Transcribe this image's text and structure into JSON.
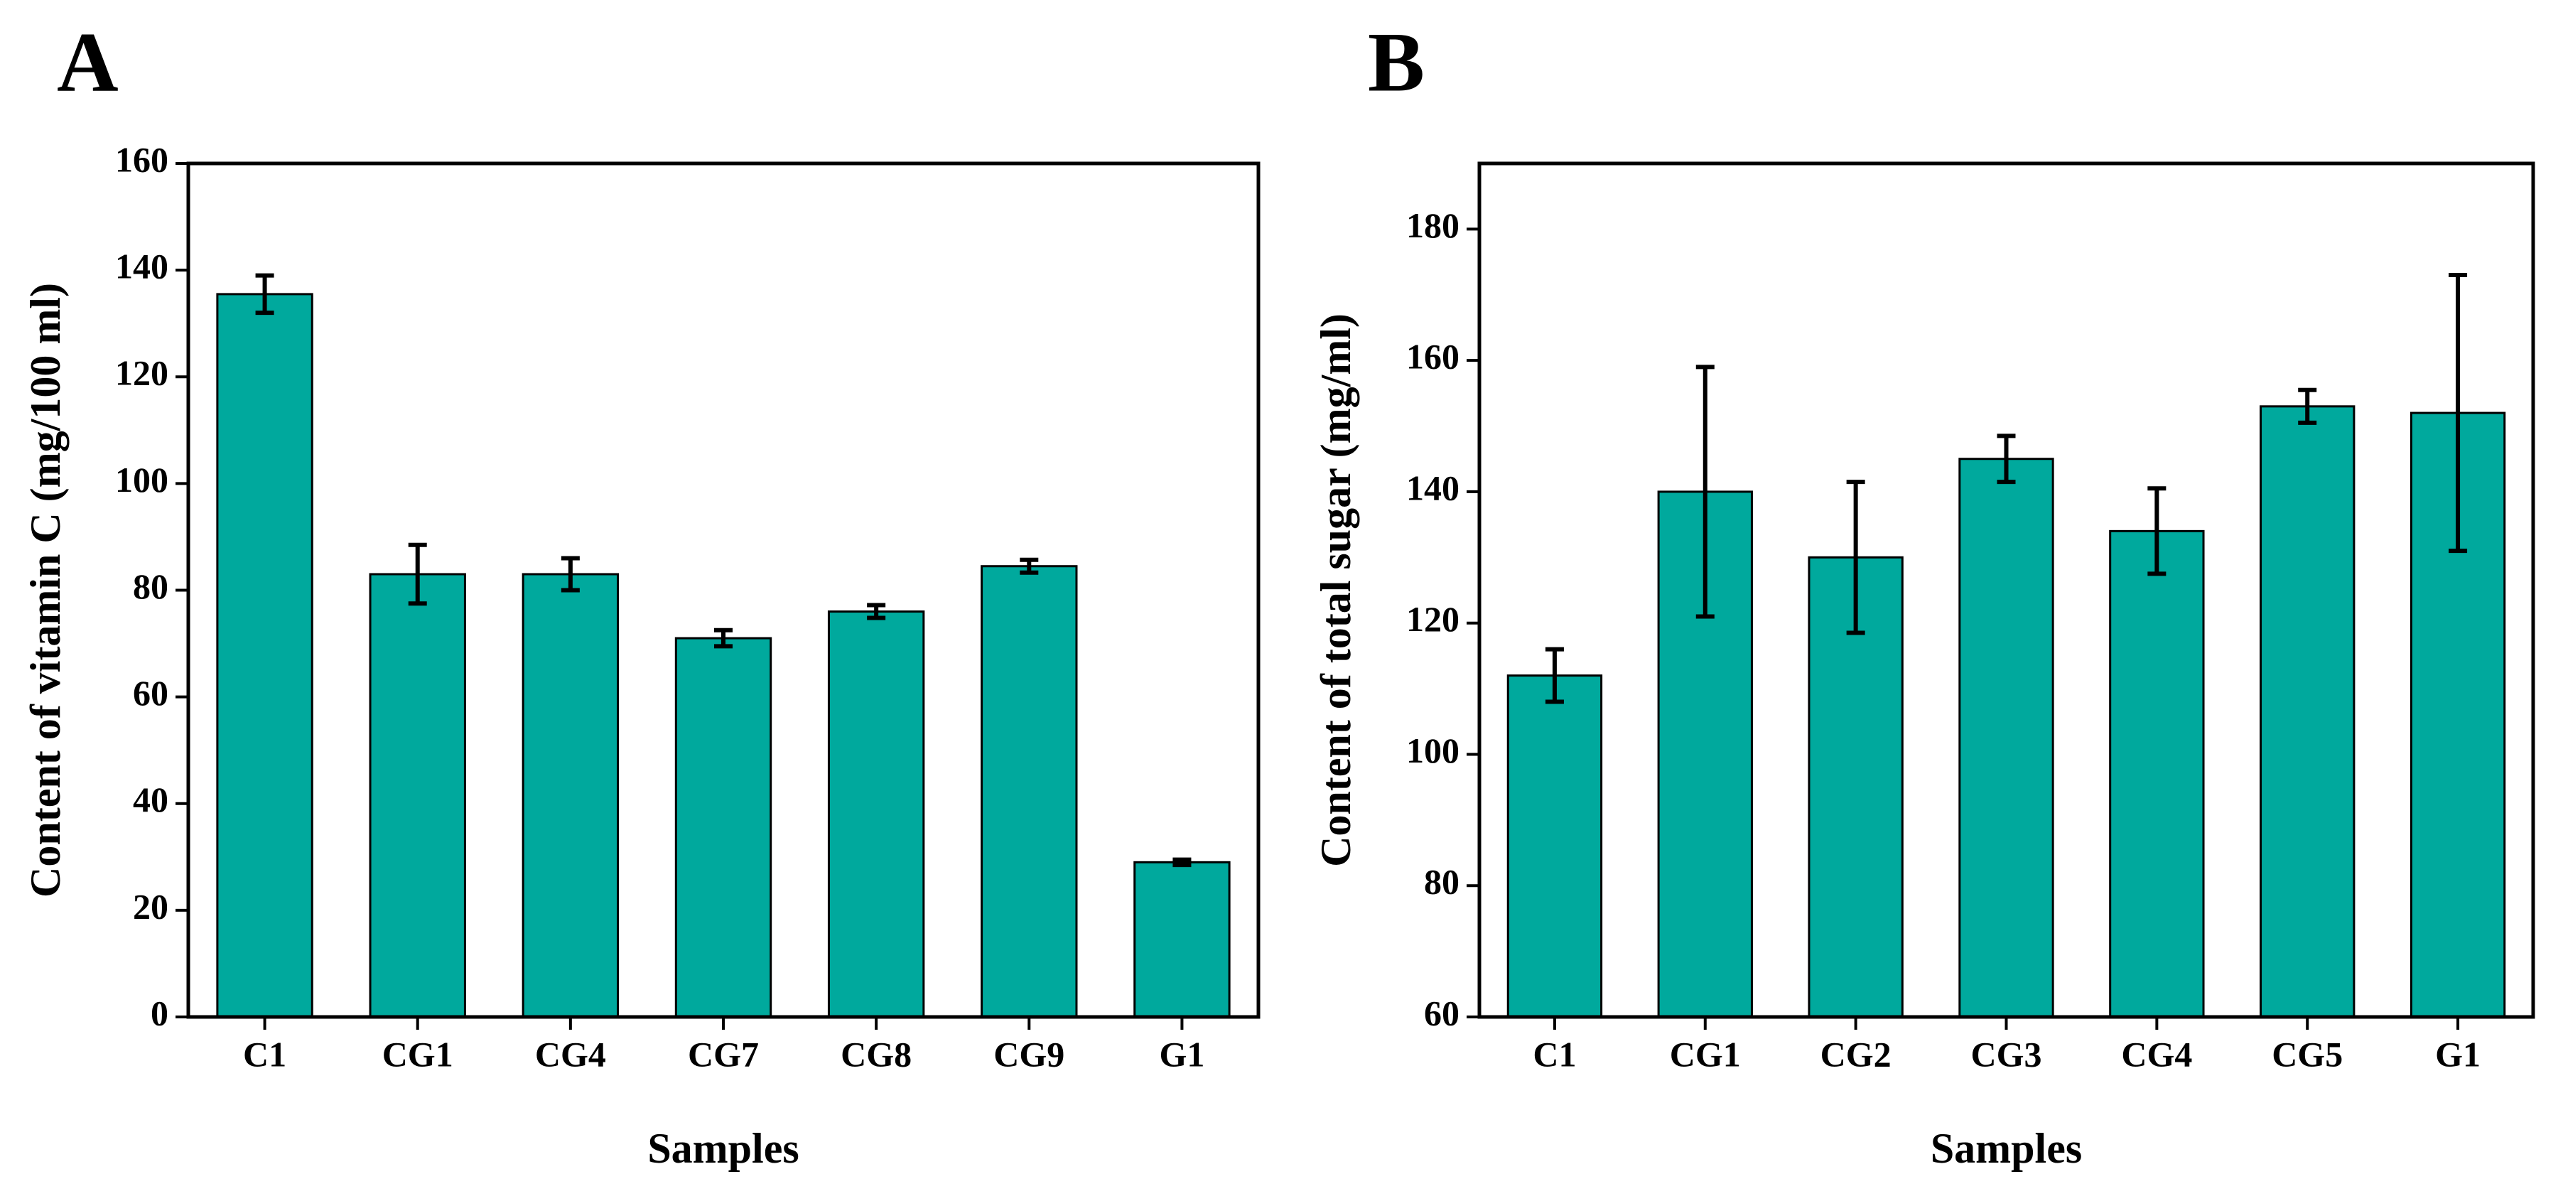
{
  "chart_data": [
    {
      "type": "bar",
      "label": "A",
      "y_label": "Content of vitamin C (mg/100 ml)",
      "x_label": "Samples",
      "categories": [
        "C1",
        "CG1",
        "CG4",
        "CG7",
        "CG8",
        "CG9",
        "G1"
      ],
      "values": [
        135.5,
        83,
        83,
        71,
        76,
        84.5,
        29
      ],
      "errors": [
        3.5,
        5.5,
        3,
        1.5,
        1.2,
        1.2,
        0.5
      ],
      "color": "#00a99d",
      "ylim": [
        0,
        160
      ],
      "yticks": [
        0,
        20,
        40,
        60,
        80,
        100,
        120,
        140,
        160
      ]
    },
    {
      "type": "bar",
      "label": "B",
      "y_label": "Content of total sugar (mg/ml)",
      "x_label": "Samples",
      "categories": [
        "C1",
        "CG1",
        "CG2",
        "CG3",
        "CG4",
        "CG5",
        "G1"
      ],
      "values": [
        112,
        140,
        130,
        145,
        134,
        153,
        152
      ],
      "errors": [
        4,
        19,
        11.5,
        3.5,
        6.5,
        2.5,
        21
      ],
      "color": "#00a99d",
      "ylim": [
        60,
        190
      ],
      "yticks": [
        60,
        80,
        100,
        120,
        140,
        160,
        180
      ]
    }
  ]
}
